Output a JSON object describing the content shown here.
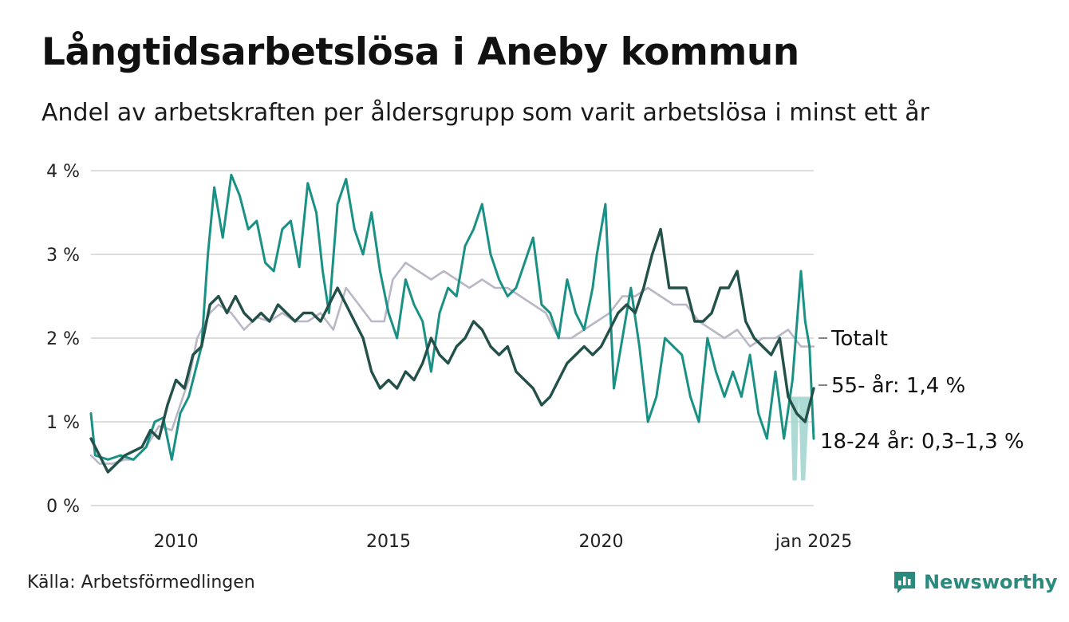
{
  "header": {
    "title": "Långtidsarbetslösa i Aneby kommun",
    "subtitle": "Andel av arbetskraften per åldersgrupp som varit arbetslösa i minst ett år"
  },
  "footer": {
    "source": "Källa: Arbetsförmedlingen",
    "brand": "Newsworthy",
    "brand_icon": "bar-chart-speech-bubble-icon"
  },
  "colors": {
    "totalt": "#b9b7c6",
    "age55": "#24504a",
    "age1824": "#1a9184",
    "uncertainty_band": "#9fd4cc",
    "grid": "#dddddd",
    "brand": "#2a8a7e"
  },
  "chart_data": {
    "type": "line",
    "xlim": [
      2008.0,
      2025.0
    ],
    "ylim": [
      0,
      4.2
    ],
    "ylabel": "",
    "xlabel": "",
    "x_ticks": [
      {
        "value": 2010.0,
        "label": "2010"
      },
      {
        "value": 2015.0,
        "label": "2015"
      },
      {
        "value": 2020.0,
        "label": "2020"
      },
      {
        "value": 2025.0,
        "label": "jan 2025"
      }
    ],
    "y_ticks": [
      {
        "value": 0,
        "label": "0 %"
      },
      {
        "value": 1,
        "label": "1 %"
      },
      {
        "value": 2,
        "label": "2 %"
      },
      {
        "value": 3,
        "label": "3 %"
      },
      {
        "value": 4,
        "label": "4 %"
      }
    ],
    "grid": true,
    "series": [
      {
        "key": "totalt",
        "end_label": "Totalt",
        "x": [
          2008.0,
          2008.2,
          2008.5,
          2008.8,
          2009.0,
          2009.3,
          2009.6,
          2009.9,
          2010.1,
          2010.3,
          2010.5,
          2010.8,
          2011.0,
          2011.3,
          2011.6,
          2011.9,
          2012.2,
          2012.5,
          2012.8,
          2013.1,
          2013.4,
          2013.7,
          2014.0,
          2014.3,
          2014.6,
          2014.9,
          2015.1,
          2015.4,
          2015.7,
          2016.0,
          2016.3,
          2016.6,
          2016.9,
          2017.2,
          2017.5,
          2017.8,
          2018.1,
          2018.4,
          2018.7,
          2019.0,
          2019.3,
          2019.6,
          2019.9,
          2020.2,
          2020.5,
          2020.8,
          2021.1,
          2021.4,
          2021.7,
          2022.0,
          2022.3,
          2022.6,
          2022.9,
          2023.2,
          2023.5,
          2023.8,
          2024.1,
          2024.4,
          2024.7,
          2025.0
        ],
        "y": [
          0.6,
          0.5,
          0.5,
          0.55,
          0.55,
          0.7,
          0.95,
          0.9,
          1.2,
          1.5,
          2.0,
          2.3,
          2.4,
          2.3,
          2.1,
          2.25,
          2.2,
          2.3,
          2.2,
          2.2,
          2.3,
          2.1,
          2.6,
          2.4,
          2.2,
          2.2,
          2.7,
          2.9,
          2.8,
          2.7,
          2.8,
          2.7,
          2.6,
          2.7,
          2.6,
          2.6,
          2.5,
          2.4,
          2.3,
          2.0,
          2.0,
          2.1,
          2.2,
          2.3,
          2.5,
          2.5,
          2.6,
          2.5,
          2.4,
          2.4,
          2.2,
          2.1,
          2.0,
          2.1,
          1.9,
          2.0,
          2.0,
          2.1,
          1.9,
          1.9
        ]
      },
      {
        "key": "age1824",
        "end_label": "18-24 år: 0,3–1,3 %",
        "x": [
          2008.0,
          2008.1,
          2008.4,
          2008.7,
          2009.0,
          2009.3,
          2009.5,
          2009.7,
          2009.9,
          2010.1,
          2010.3,
          2010.45,
          2010.6,
          2010.75,
          2010.9,
          2011.1,
          2011.3,
          2011.5,
          2011.7,
          2011.9,
          2012.1,
          2012.3,
          2012.5,
          2012.7,
          2012.9,
          2013.1,
          2013.3,
          2013.45,
          2013.6,
          2013.8,
          2014.0,
          2014.2,
          2014.4,
          2014.6,
          2014.8,
          2015.0,
          2015.2,
          2015.4,
          2015.6,
          2015.8,
          2016.0,
          2016.2,
          2016.4,
          2016.6,
          2016.8,
          2017.0,
          2017.2,
          2017.4,
          2017.6,
          2017.8,
          2018.0,
          2018.2,
          2018.4,
          2018.6,
          2018.8,
          2019.0,
          2019.2,
          2019.4,
          2019.6,
          2019.8,
          2019.9,
          2020.1,
          2020.3,
          2020.5,
          2020.7,
          2020.9,
          2021.1,
          2021.3,
          2021.5,
          2021.7,
          2021.9,
          2022.1,
          2022.3,
          2022.5,
          2022.7,
          2022.9,
          2023.1,
          2023.3,
          2023.5,
          2023.7,
          2023.9,
          2024.1,
          2024.3,
          2024.5,
          2024.7,
          2024.8,
          2024.9,
          2025.0
        ],
        "y": [
          1.1,
          0.6,
          0.55,
          0.6,
          0.55,
          0.7,
          1.0,
          1.05,
          0.55,
          1.1,
          1.3,
          1.6,
          1.9,
          3.0,
          3.8,
          3.2,
          3.95,
          3.7,
          3.3,
          3.4,
          2.9,
          2.8,
          3.3,
          3.4,
          2.85,
          3.85,
          3.5,
          2.8,
          2.3,
          3.6,
          3.9,
          3.3,
          3.0,
          3.5,
          2.8,
          2.3,
          2.0,
          2.7,
          2.4,
          2.2,
          1.6,
          2.3,
          2.6,
          2.5,
          3.1,
          3.3,
          3.6,
          3.0,
          2.7,
          2.5,
          2.6,
          2.9,
          3.2,
          2.4,
          2.3,
          2.0,
          2.7,
          2.3,
          2.1,
          2.6,
          3.0,
          3.6,
          1.4,
          2.0,
          2.6,
          1.9,
          1.0,
          1.3,
          2.0,
          1.9,
          1.8,
          1.3,
          1.0,
          2.0,
          1.6,
          1.3,
          1.6,
          1.3,
          1.8,
          1.1,
          0.8,
          1.6,
          0.8,
          1.5,
          2.8,
          2.2,
          1.9,
          0.8
        ]
      },
      {
        "key": "age55",
        "end_label": "55- år: 1,4 %",
        "x": [
          2008.0,
          2008.2,
          2008.4,
          2008.6,
          2008.8,
          2009.0,
          2009.2,
          2009.4,
          2009.6,
          2009.8,
          2010.0,
          2010.2,
          2010.4,
          2010.6,
          2010.8,
          2011.0,
          2011.2,
          2011.4,
          2011.6,
          2011.8,
          2012.0,
          2012.2,
          2012.4,
          2012.6,
          2012.8,
          2013.0,
          2013.2,
          2013.4,
          2013.6,
          2013.8,
          2014.0,
          2014.2,
          2014.4,
          2014.6,
          2014.8,
          2015.0,
          2015.2,
          2015.4,
          2015.6,
          2015.8,
          2016.0,
          2016.2,
          2016.4,
          2016.6,
          2016.8,
          2017.0,
          2017.2,
          2017.4,
          2017.6,
          2017.8,
          2018.0,
          2018.2,
          2018.4,
          2018.6,
          2018.8,
          2019.0,
          2019.2,
          2019.4,
          2019.6,
          2019.8,
          2020.0,
          2020.2,
          2020.4,
          2020.6,
          2020.8,
          2021.0,
          2021.2,
          2021.4,
          2021.6,
          2021.8,
          2022.0,
          2022.2,
          2022.4,
          2022.6,
          2022.8,
          2023.0,
          2023.2,
          2023.4,
          2023.6,
          2023.8,
          2024.0,
          2024.2,
          2024.4,
          2024.6,
          2024.8,
          2025.0
        ],
        "y": [
          0.8,
          0.6,
          0.4,
          0.5,
          0.6,
          0.65,
          0.7,
          0.9,
          0.8,
          1.2,
          1.5,
          1.4,
          1.8,
          1.9,
          2.4,
          2.5,
          2.3,
          2.5,
          2.3,
          2.2,
          2.3,
          2.2,
          2.4,
          2.3,
          2.2,
          2.3,
          2.3,
          2.2,
          2.4,
          2.6,
          2.4,
          2.2,
          2.0,
          1.6,
          1.4,
          1.5,
          1.4,
          1.6,
          1.5,
          1.7,
          2.0,
          1.8,
          1.7,
          1.9,
          2.0,
          2.2,
          2.1,
          1.9,
          1.8,
          1.9,
          1.6,
          1.5,
          1.4,
          1.2,
          1.3,
          1.5,
          1.7,
          1.8,
          1.9,
          1.8,
          1.9,
          2.1,
          2.3,
          2.4,
          2.3,
          2.6,
          3.0,
          3.3,
          2.6,
          2.6,
          2.6,
          2.2,
          2.2,
          2.3,
          2.6,
          2.6,
          2.8,
          2.2,
          2.0,
          1.9,
          1.8,
          2.0,
          1.3,
          1.1,
          1.0,
          1.4
        ]
      }
    ],
    "band": {
      "key": "age1824_range",
      "x": [
        2024.45,
        2024.5,
        2024.6,
        2024.65,
        2024.7,
        2024.8,
        2024.9
      ],
      "low": [
        1.3,
        0.3,
        0.3,
        1.3,
        0.3,
        0.3,
        1.3
      ],
      "high": [
        1.3,
        1.3,
        1.3,
        1.3,
        1.3,
        1.3,
        1.3
      ]
    }
  }
}
